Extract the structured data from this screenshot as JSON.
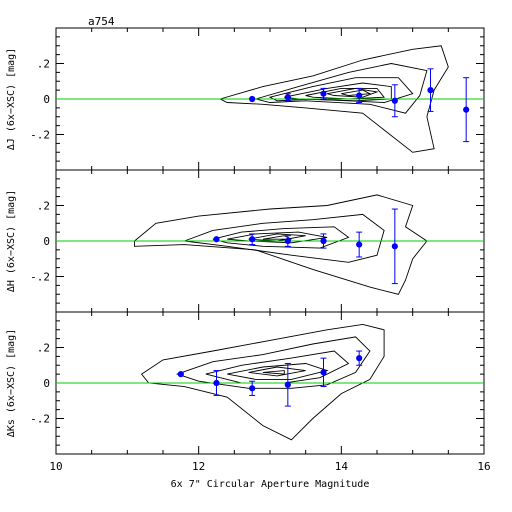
{
  "figure": {
    "title": "a754",
    "xlabel": "6x 7\" Circular Aperture Magnitude"
  },
  "colors": {
    "frame": "#000000",
    "contour": "#000000",
    "zero_line": "#00cc00",
    "points": "#0000ff"
  },
  "chart_data": [
    {
      "type": "scatter",
      "panel": "J",
      "ylabel": "ΔJ (6x−XSC) [mag]",
      "xlim": [
        10,
        16
      ],
      "ylim": [
        -0.4,
        0.4
      ],
      "xticks": [
        10,
        12,
        14,
        16
      ],
      "yticks": [
        -0.2,
        0,
        0.2
      ],
      "zero_line": 0,
      "series": [
        {
          "x": [
            12.75,
            13.25,
            13.75,
            14.25,
            14.75,
            15.25,
            15.75
          ],
          "y": [
            0.0,
            0.01,
            0.03,
            0.02,
            -0.01,
            0.05,
            -0.06
          ],
          "err": [
            0.0,
            0.02,
            0.03,
            0.04,
            0.09,
            0.12,
            0.18
          ]
        }
      ]
    },
    {
      "type": "scatter",
      "panel": "H",
      "ylabel": "ΔH (6x−XSC) [mag]",
      "xlim": [
        10,
        16
      ],
      "ylim": [
        -0.4,
        0.4
      ],
      "xticks": [
        10,
        12,
        14,
        16
      ],
      "yticks": [
        -0.2,
        0,
        0.2
      ],
      "zero_line": 0,
      "series": [
        {
          "x": [
            12.25,
            12.75,
            13.25,
            13.75,
            14.25,
            14.75
          ],
          "y": [
            0.01,
            0.01,
            0.0,
            0.0,
            -0.02,
            -0.03
          ],
          "err": [
            0.0,
            0.03,
            0.03,
            0.04,
            0.07,
            0.21
          ]
        }
      ]
    },
    {
      "type": "scatter",
      "panel": "Ks",
      "ylabel": "ΔKs (6x−XSC) [mag]",
      "xlim": [
        10,
        16
      ],
      "ylim": [
        -0.4,
        0.4
      ],
      "xticks": [
        10,
        12,
        14,
        16
      ],
      "xticklabels": [
        "10",
        "12",
        "14",
        "16"
      ],
      "yticks": [
        -0.2,
        0,
        0.2
      ],
      "zero_line": 0,
      "series": [
        {
          "x": [
            11.75,
            12.25,
            12.75,
            13.25,
            13.75,
            14.25
          ],
          "y": [
            0.05,
            0.0,
            -0.03,
            -0.01,
            0.06,
            0.14
          ],
          "err": [
            0.0,
            0.07,
            0.04,
            0.12,
            0.08,
            0.04
          ]
        }
      ]
    }
  ]
}
